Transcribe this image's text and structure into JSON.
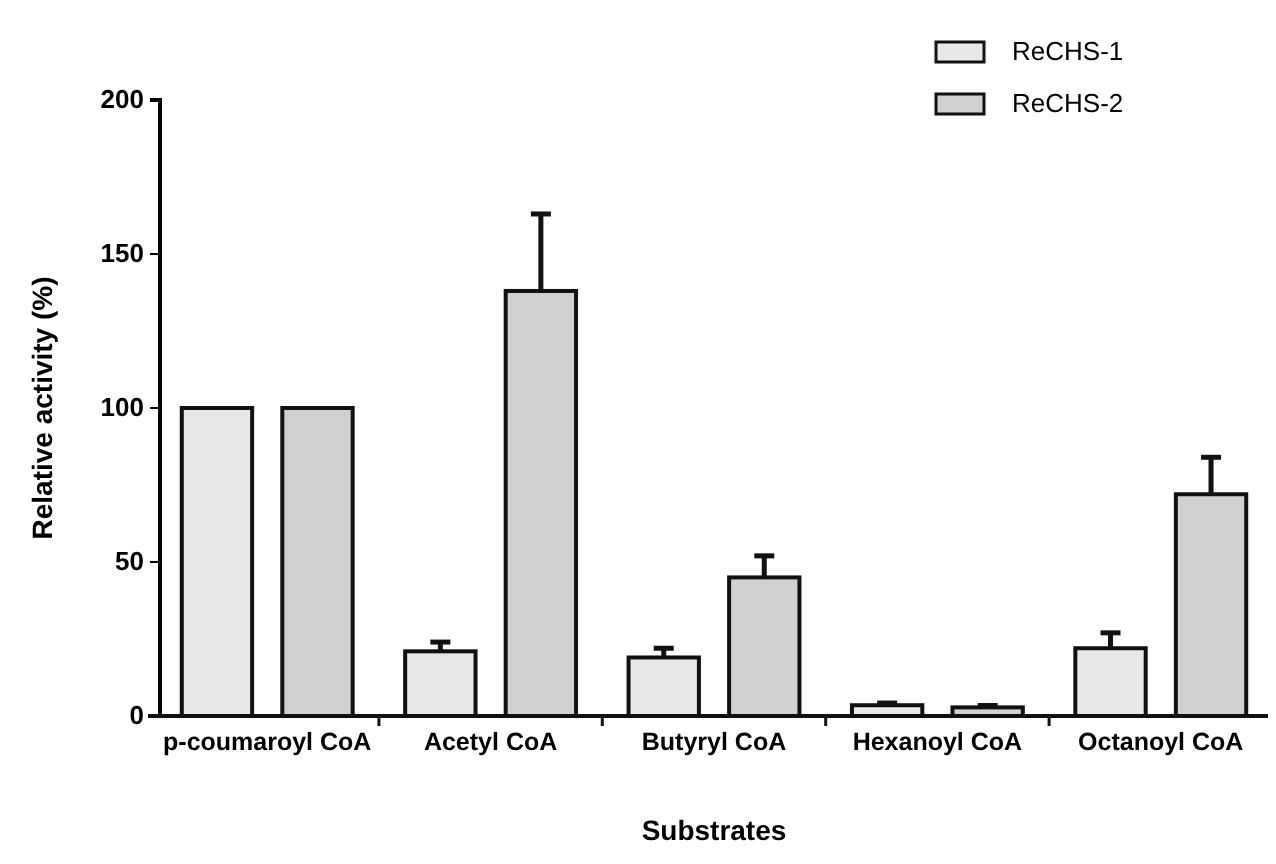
{
  "chart_data": {
    "type": "bar",
    "xlabel": "Substrates",
    "ylabel": "Relative activity (%)",
    "categories": [
      "p-coumaroyl CoA",
      "Acetyl CoA",
      "Butyryl CoA",
      "Hexanoyl CoA",
      "Octanoyl CoA"
    ],
    "series": [
      {
        "name": "ReCHS-1",
        "color": "#e8e8e8",
        "values": [
          100,
          21,
          19,
          3.5,
          22
        ],
        "errors": [
          null,
          [
            21,
            24
          ],
          [
            19,
            22
          ],
          [
            3.5,
            4.2
          ],
          [
            22,
            27
          ]
        ]
      },
      {
        "name": "ReCHS-2",
        "color": "#d0d0d0",
        "values": [
          100,
          138,
          45,
          2.8,
          72
        ],
        "errors": [
          null,
          [
            138,
            163
          ],
          [
            45,
            52
          ],
          [
            2.8,
            3.4
          ],
          [
            72,
            84
          ]
        ]
      }
    ],
    "ylim": [
      0,
      200
    ],
    "yticks": [
      0,
      50,
      100,
      150,
      200
    ],
    "grid": false,
    "legend": "top right"
  }
}
